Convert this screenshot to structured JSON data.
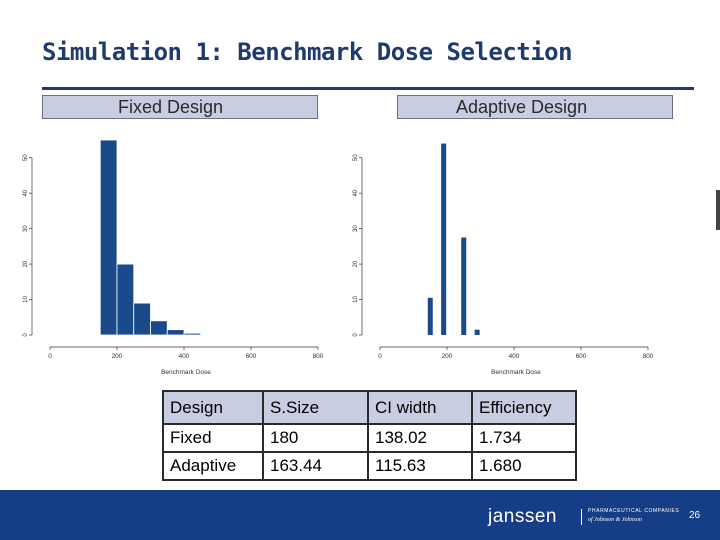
{
  "slide": {
    "title": "Simulation 1: Benchmark Dose Selection",
    "page_number": "26"
  },
  "panels": {
    "fixed_label": "Fixed Design",
    "adaptive_label": "Adaptive Design"
  },
  "colors": {
    "bar": "#1a4a8a",
    "title": "#1f3b6e",
    "footer": "#163e86",
    "label_bg": "#c9cde2"
  },
  "chart_data": [
    {
      "type": "bar",
      "title": "Fixed Design",
      "xlabel": "Benchmark Dose",
      "ylabel": "",
      "xlim": [
        0,
        800
      ],
      "ylim": [
        0,
        55
      ],
      "x_ticks": [
        "0",
        "200",
        "400",
        "600",
        "800"
      ],
      "y_ticks": [
        "0",
        "10",
        "20",
        "30",
        "40",
        "50"
      ],
      "bins": [
        [
          150,
          200
        ],
        [
          200,
          250
        ],
        [
          250,
          300
        ],
        [
          300,
          350
        ],
        [
          350,
          400
        ],
        [
          400,
          450
        ]
      ],
      "values": [
        55,
        20,
        9,
        4,
        1.5,
        0.5
      ]
    },
    {
      "type": "bar",
      "title": "Adaptive Design",
      "xlabel": "Benchmark Dose",
      "ylabel": "",
      "xlim": [
        0,
        800
      ],
      "ylim": [
        0,
        55
      ],
      "x_ticks": [
        "0",
        "200",
        "400",
        "600",
        "800"
      ],
      "y_ticks": [
        "0",
        "10",
        "20",
        "30",
        "40",
        "50"
      ],
      "x": [
        150,
        190,
        250,
        290
      ],
      "values": [
        10.5,
        54,
        27.5,
        1.5
      ]
    }
  ],
  "table": {
    "headers": [
      "Design",
      "S.Size",
      "CI width",
      "Efficiency"
    ],
    "rows": [
      [
        "Fixed",
        "180",
        "138.02",
        "1.734"
      ],
      [
        "Adaptive",
        "163.44",
        "115.63",
        "1.680"
      ]
    ]
  },
  "footer": {
    "logo_text": "janssen",
    "logo_sub_1": "PHARMACEUTICAL COMPANIES",
    "logo_sub_2": "of Johnson & Johnson"
  }
}
